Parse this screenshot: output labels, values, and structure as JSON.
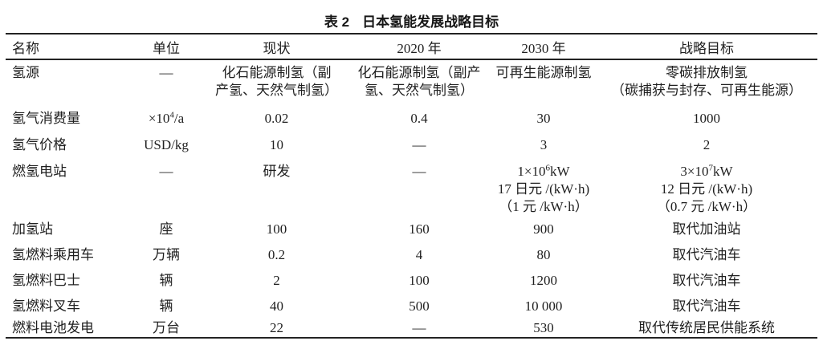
{
  "caption": {
    "label": "表 2",
    "text": "日本氢能发展战略目标"
  },
  "colors": {
    "text": "#1f1f1f",
    "rule": "#232323",
    "background": "#ffffff"
  },
  "table": {
    "headers": [
      "名称",
      "单位",
      "现状",
      "2020 年",
      "2030 年",
      "战略目标"
    ],
    "rows": [
      {
        "name": "氢源",
        "unit": "—",
        "current_lines": [
          "化石能源制氢（副",
          "产氢、天然气制氢）"
        ],
        "y2020_lines": [
          "化石能源制氢（副产",
          "氢、天然气制氢）"
        ],
        "y2030": "可再生能源制氢",
        "goal_lines": [
          "零碳排放制氢",
          "（碳捕获与封存、可再生能源）"
        ]
      },
      {
        "name": "氢气消费量",
        "unit_pre": "×10",
        "unit_sup": "4",
        "unit_post": "/a",
        "current": "0.02",
        "y2020": "0.4",
        "y2030": "30",
        "goal": "1000"
      },
      {
        "name": "氢气价格",
        "unit": "USD/kg",
        "current": "10",
        "y2020": "—",
        "y2030": "3",
        "goal": "2"
      },
      {
        "name": "燃氢电站",
        "unit": "—",
        "current": "研发",
        "y2020": "—",
        "y2030_l1_pre": "1×10",
        "y2030_l1_sup": "6",
        "y2030_l1_post": "kW",
        "y2030_l2": "17 日元 /(kW·h)",
        "y2030_l3": "（1 元 /kW·h）",
        "goal_l1_pre": "3×10",
        "goal_l1_sup": "7",
        "goal_l1_post": "kW",
        "goal_l2": "12 日元 /(kW·h)",
        "goal_l3": "（0.7 元 /kW·h）"
      },
      {
        "name": "加氢站",
        "unit": "座",
        "current": "100",
        "y2020": "160",
        "y2030": "900",
        "goal": "取代加油站"
      },
      {
        "name": "氢燃料乘用车",
        "unit": "万辆",
        "current": "0.2",
        "y2020": "4",
        "y2030": "80",
        "goal": "取代汽油车"
      },
      {
        "name": "氢燃料巴士",
        "unit": "辆",
        "current": "2",
        "y2020": "100",
        "y2030": "1200",
        "goal": "取代汽油车"
      },
      {
        "name": "氢燃料叉车",
        "unit": "辆",
        "current": "40",
        "y2020": "500",
        "y2030": "10 000",
        "goal": "取代汽油车"
      },
      {
        "name": "燃料电池发电",
        "unit": "万台",
        "current": "22",
        "y2020": "—",
        "y2030": "530",
        "goal": "取代传统居民供能系统"
      }
    ]
  }
}
